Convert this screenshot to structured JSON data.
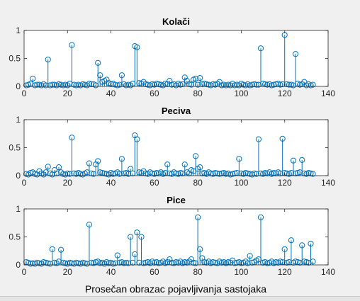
{
  "figure": {
    "xlabel": "Prosečan obrazac pojavljivanja sastojaka",
    "colors": {
      "stem": "#0072bd",
      "axes": "#262626",
      "background": "#f0f0f0",
      "plot_bg": "#ffffff"
    }
  },
  "chart_data": [
    {
      "type": "stem",
      "title": "Kolači",
      "xlim": [
        0,
        140
      ],
      "ylim": [
        0,
        1
      ],
      "xticks": [
        0,
        20,
        40,
        60,
        80,
        100,
        120,
        140
      ],
      "yticks": [
        0,
        0.5,
        1
      ],
      "ytick_labels": [
        "0",
        "0.5",
        "1"
      ],
      "x": [
        1,
        2,
        3,
        4,
        5,
        6,
        7,
        8,
        9,
        10,
        11,
        12,
        13,
        14,
        15,
        16,
        17,
        18,
        19,
        20,
        21,
        22,
        23,
        24,
        25,
        26,
        27,
        28,
        29,
        30,
        31,
        32,
        33,
        34,
        35,
        36,
        37,
        38,
        39,
        40,
        41,
        42,
        43,
        44,
        45,
        46,
        47,
        48,
        49,
        50,
        51,
        52,
        53,
        54,
        55,
        56,
        57,
        58,
        59,
        60,
        61,
        62,
        63,
        64,
        65,
        66,
        67,
        68,
        69,
        70,
        71,
        72,
        73,
        74,
        75,
        76,
        77,
        78,
        79,
        80,
        81,
        82,
        83,
        84,
        85,
        86,
        87,
        88,
        89,
        90,
        91,
        92,
        93,
        94,
        95,
        96,
        97,
        98,
        99,
        100,
        101,
        102,
        103,
        104,
        105,
        106,
        107,
        108,
        109,
        110,
        111,
        112,
        113,
        114,
        115,
        116,
        117,
        118,
        119,
        120,
        121,
        122,
        123,
        124,
        125,
        126,
        127,
        128,
        129,
        130,
        131,
        132,
        133
      ],
      "y": [
        0.02,
        0.03,
        0.05,
        0.14,
        0.02,
        0.03,
        0.03,
        0.02,
        0.04,
        0.02,
        0.48,
        0.02,
        0.03,
        0.03,
        0.02,
        0.04,
        0.03,
        0.02,
        0.03,
        0.02,
        0.05,
        0.74,
        0.03,
        0.02,
        0.03,
        0.02,
        0.04,
        0.03,
        0.02,
        0.05,
        0.04,
        0.04,
        0.02,
        0.42,
        0.2,
        0.08,
        0.1,
        0.12,
        0.06,
        0.04,
        0.05,
        0.03,
        0.02,
        0.03,
        0.2,
        0.04,
        0.02,
        0.03,
        0.02,
        0.05,
        0.72,
        0.7,
        0.06,
        0.05,
        0.08,
        0.04,
        0.03,
        0.02,
        0.04,
        0.03,
        0.05,
        0.04,
        0.03,
        0.02,
        0.05,
        0.04,
        0.1,
        0.03,
        0.04,
        0.02,
        0.05,
        0.03,
        0.04,
        0.16,
        0.1,
        0.04,
        0.03,
        0.12,
        0.14,
        0.03,
        0.15,
        0.04,
        0.05,
        0.04,
        0.03,
        0.02,
        0.04,
        0.03,
        0.05,
        0.08,
        0.02,
        0.03,
        0.02,
        0.03,
        0.02,
        0.05,
        0.02,
        0.03,
        0.02,
        0.05,
        0.03,
        0.02,
        0.04,
        0.02,
        0.03,
        0.04,
        0.03,
        0.03,
        0.68,
        0.05,
        0.04,
        0.03,
        0.04,
        0.02,
        0.03,
        0.04,
        0.05,
        0.03,
        0.04,
        0.92,
        0.04,
        0.03,
        0.03,
        0.02,
        0.58,
        0.05,
        0.03,
        0.04,
        0.08,
        0.02,
        0.04,
        0.02,
        0.03
      ]
    },
    {
      "type": "stem",
      "title": "Peciva",
      "xlim": [
        0,
        140
      ],
      "ylim": [
        0,
        1
      ],
      "xticks": [
        0,
        20,
        40,
        60,
        80,
        100,
        120,
        140
      ],
      "yticks": [
        0,
        0.5,
        1
      ],
      "ytick_labels": [
        "0",
        "0.5",
        "1"
      ],
      "x": [
        1,
        2,
        3,
        4,
        5,
        6,
        7,
        8,
        9,
        10,
        11,
        12,
        13,
        14,
        15,
        16,
        17,
        18,
        19,
        20,
        21,
        22,
        23,
        24,
        25,
        26,
        27,
        28,
        29,
        30,
        31,
        32,
        33,
        34,
        35,
        36,
        37,
        38,
        39,
        40,
        41,
        42,
        43,
        44,
        45,
        46,
        47,
        48,
        49,
        50,
        51,
        52,
        53,
        54,
        55,
        56,
        57,
        58,
        59,
        60,
        61,
        62,
        63,
        64,
        65,
        66,
        67,
        68,
        69,
        70,
        71,
        72,
        73,
        74,
        75,
        76,
        77,
        78,
        79,
        80,
        81,
        82,
        83,
        84,
        85,
        86,
        87,
        88,
        89,
        90,
        91,
        92,
        93,
        94,
        95,
        96,
        97,
        98,
        99,
        100,
        101,
        102,
        103,
        104,
        105,
        106,
        107,
        108,
        109,
        110,
        111,
        112,
        113,
        114,
        115,
        116,
        117,
        118,
        119,
        120,
        121,
        122,
        123,
        124,
        125,
        126,
        127,
        128,
        129,
        130,
        131,
        132,
        133
      ],
      "y": [
        0.03,
        0.02,
        0.05,
        0.06,
        0.03,
        0.02,
        0.08,
        0.04,
        0.02,
        0.06,
        0.16,
        0.04,
        0.02,
        0.1,
        0.04,
        0.15,
        0.06,
        0.03,
        0.02,
        0.04,
        0.03,
        0.68,
        0.04,
        0.03,
        0.05,
        0.03,
        0.02,
        0.04,
        0.06,
        0.22,
        0.04,
        0.03,
        0.2,
        0.26,
        0.06,
        0.05,
        0.04,
        0.03,
        0.02,
        0.05,
        0.03,
        0.04,
        0.06,
        0.03,
        0.3,
        0.04,
        0.05,
        0.03,
        0.12,
        0.04,
        0.72,
        0.65,
        0.06,
        0.05,
        0.08,
        0.04,
        0.03,
        0.06,
        0.04,
        0.03,
        0.05,
        0.04,
        0.06,
        0.03,
        0.05,
        0.2,
        0.04,
        0.03,
        0.06,
        0.04,
        0.03,
        0.05,
        0.04,
        0.2,
        0.06,
        0.04,
        0.1,
        0.08,
        0.35,
        0.12,
        0.15,
        0.04,
        0.05,
        0.03,
        0.06,
        0.04,
        0.03,
        0.05,
        0.04,
        0.03,
        0.04,
        0.05,
        0.03,
        0.04,
        0.02,
        0.03,
        0.04,
        0.05,
        0.3,
        0.04,
        0.03,
        0.05,
        0.04,
        0.03,
        0.02,
        0.04,
        0.03,
        0.65,
        0.04,
        0.03,
        0.05,
        0.04,
        0.06,
        0.03,
        0.05,
        0.04,
        0.06,
        0.04,
        0.66,
        0.05,
        0.04,
        0.03,
        0.05,
        0.27,
        0.04,
        0.05,
        0.06,
        0.28,
        0.04,
        0.03,
        0.05,
        0.04,
        0.03
      ]
    },
    {
      "type": "stem",
      "title": "Pice",
      "xlim": [
        0,
        140
      ],
      "ylim": [
        0,
        1
      ],
      "xticks": [
        0,
        20,
        40,
        60,
        80,
        100,
        120,
        140
      ],
      "yticks": [
        0,
        0.5,
        1
      ],
      "ytick_labels": [
        "0",
        "0.5",
        "1"
      ],
      "x": [
        1,
        2,
        3,
        4,
        5,
        6,
        7,
        8,
        9,
        10,
        11,
        12,
        13,
        14,
        15,
        16,
        17,
        18,
        19,
        20,
        21,
        22,
        23,
        24,
        25,
        26,
        27,
        28,
        29,
        30,
        31,
        32,
        33,
        34,
        35,
        36,
        37,
        38,
        39,
        40,
        41,
        42,
        43,
        44,
        45,
        46,
        47,
        48,
        49,
        50,
        51,
        52,
        53,
        54,
        55,
        56,
        57,
        58,
        59,
        60,
        61,
        62,
        63,
        64,
        65,
        66,
        67,
        68,
        69,
        70,
        71,
        72,
        73,
        74,
        75,
        76,
        77,
        78,
        79,
        80,
        81,
        82,
        83,
        84,
        85,
        86,
        87,
        88,
        89,
        90,
        91,
        92,
        93,
        94,
        95,
        96,
        97,
        98,
        99,
        100,
        101,
        102,
        103,
        104,
        105,
        106,
        107,
        108,
        109,
        110,
        111,
        112,
        113,
        114,
        115,
        116,
        117,
        118,
        119,
        120,
        121,
        122,
        123,
        124,
        125,
        126,
        127,
        128,
        129,
        130,
        131,
        132,
        133
      ],
      "y": [
        0.05,
        0.04,
        0.02,
        0.03,
        0.02,
        0.04,
        0.03,
        0.02,
        0.05,
        0.04,
        0.03,
        0.02,
        0.28,
        0.04,
        0.03,
        0.06,
        0.27,
        0.04,
        0.03,
        0.02,
        0.04,
        0.03,
        0.02,
        0.04,
        0.03,
        0.02,
        0.04,
        0.03,
        0.02,
        0.72,
        0.04,
        0.03,
        0.05,
        0.06,
        0.03,
        0.04,
        0.02,
        0.05,
        0.03,
        0.04,
        0.02,
        0.03,
        0.17,
        0.04,
        0.05,
        0.03,
        0.04,
        0.03,
        0.5,
        0.04,
        0.19,
        0.58,
        0.04,
        0.5,
        0.03,
        0.04,
        0.05,
        0.03,
        0.06,
        0.04,
        0.05,
        0.03,
        0.04,
        0.06,
        0.03,
        0.05,
        0.1,
        0.04,
        0.03,
        0.05,
        0.04,
        0.06,
        0.03,
        0.05,
        0.04,
        0.06,
        0.1,
        0.04,
        0.03,
        0.85,
        0.28,
        0.12,
        0.05,
        0.04,
        0.06,
        0.03,
        0.05,
        0.04,
        0.03,
        0.06,
        0.04,
        0.05,
        0.03,
        0.05,
        0.04,
        0.08,
        0.03,
        0.04,
        0.05,
        0.03,
        0.04,
        0.06,
        0.03,
        0.16,
        0.04,
        0.05,
        0.08,
        0.1,
        0.85,
        0.04,
        0.05,
        0.03,
        0.04,
        0.06,
        0.03,
        0.05,
        0.04,
        0.06,
        0.05,
        0.28,
        0.04,
        0.05,
        0.44,
        0.04,
        0.06,
        0.05,
        0.04,
        0.35,
        0.06,
        0.05,
        0.04,
        0.38,
        0.06
      ]
    }
  ]
}
